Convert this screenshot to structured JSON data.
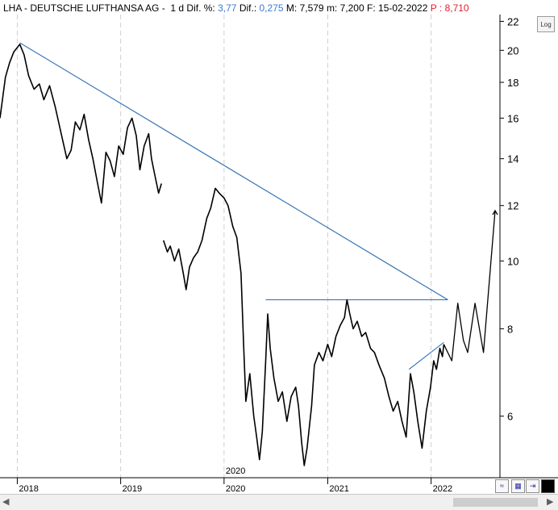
{
  "header": {
    "ticker": "LHA",
    "name": "DEUTSCHE LUFTHANSA AG",
    "period": "1 d",
    "dif_pct_label": "Dif. %:",
    "dif_pct_value": "3,77",
    "dif_label": "Dif.:",
    "dif_value": "0,275",
    "max_label": "M:",
    "max_value": "7,579",
    "min_label": "m:",
    "min_value": "7,200",
    "date_label": "F:",
    "date_value": "15-02-2022",
    "price_label": "P :",
    "price_value": "8,710"
  },
  "log_button": "Log",
  "colors": {
    "trendline": "#2b6cb0",
    "price": "#000000",
    "grid": "#c8c8c8",
    "dif": "#3a7bd5",
    "price_label": "#e0202a"
  },
  "icons": {
    "scroll_left": "left-arrow-icon",
    "scroll_right": "right-arrow-icon",
    "chart_tool": "wave-icon",
    "save": "save-icon",
    "export": "export-icon",
    "color": "color-swatch-icon"
  },
  "chart_data": {
    "type": "line",
    "y_scale": "log",
    "ylim": [
      4.9,
      22.5
    ],
    "y_ticks": [
      6,
      8,
      10,
      12,
      14,
      16,
      18,
      20,
      22
    ],
    "x_ticks": [
      "2018",
      "2019",
      "2020",
      "2021",
      "2022"
    ],
    "x_range": [
      "2017-11-01",
      "2022-09-01"
    ],
    "top_date_label": "2020",
    "series": [
      {
        "points": [
          [
            "2017-11-01",
            16.0
          ],
          [
            "2017-11-20",
            18.3
          ],
          [
            "2017-12-05",
            19.2
          ],
          [
            "2017-12-20",
            19.9
          ],
          [
            "2018-01-10",
            20.4
          ],
          [
            "2018-01-25",
            19.7
          ],
          [
            "2018-02-10",
            18.4
          ],
          [
            "2018-03-01",
            17.6
          ],
          [
            "2018-03-20",
            17.9
          ],
          [
            "2018-04-05",
            17.0
          ],
          [
            "2018-04-25",
            17.8
          ],
          [
            "2018-05-15",
            16.6
          ],
          [
            "2018-06-05",
            15.2
          ],
          [
            "2018-06-25",
            14.0
          ],
          [
            "2018-07-10",
            14.4
          ],
          [
            "2018-07-25",
            15.8
          ],
          [
            "2018-08-10",
            15.4
          ],
          [
            "2018-08-25",
            16.2
          ],
          [
            "2018-09-10",
            14.9
          ],
          [
            "2018-09-25",
            14.0
          ],
          [
            "2018-10-10",
            13.0
          ],
          [
            "2018-10-25",
            12.1
          ],
          [
            "2018-11-10",
            14.3
          ],
          [
            "2018-11-25",
            13.9
          ],
          [
            "2018-12-10",
            13.2
          ],
          [
            "2018-12-25",
            14.6
          ],
          [
            "2019-01-10",
            14.2
          ],
          [
            "2019-01-25",
            15.5
          ],
          [
            "2019-02-10",
            16.0
          ],
          [
            "2019-02-25",
            15.1
          ],
          [
            "2019-03-10",
            13.5
          ],
          [
            "2019-03-25",
            14.6
          ],
          [
            "2019-04-10",
            15.2
          ],
          [
            "2019-04-20",
            14.0
          ],
          [
            "2019-05-01",
            13.3
          ],
          [
            "2019-05-15",
            12.5
          ],
          [
            "2019-05-25",
            12.9
          ],
          null,
          [
            "2019-06-01",
            10.7
          ],
          [
            "2019-06-15",
            10.3
          ],
          [
            "2019-06-25",
            10.5
          ],
          [
            "2019-07-10",
            10.0
          ],
          [
            "2019-07-25",
            10.4
          ],
          [
            "2019-08-10",
            9.6
          ],
          [
            "2019-08-20",
            9.1
          ],
          [
            "2019-09-01",
            9.8
          ],
          [
            "2019-09-15",
            10.1
          ],
          [
            "2019-09-30",
            10.3
          ],
          [
            "2019-10-15",
            10.7
          ],
          [
            "2019-11-01",
            11.5
          ],
          [
            "2019-11-15",
            11.9
          ],
          [
            "2019-12-01",
            12.7
          ],
          [
            "2019-12-15",
            12.5
          ],
          [
            "2020-01-01",
            12.3
          ],
          [
            "2020-01-15",
            12.0
          ],
          [
            "2020-02-01",
            11.2
          ],
          [
            "2020-02-15",
            10.8
          ],
          [
            "2020-03-01",
            9.6
          ],
          [
            "2020-03-10",
            7.6
          ],
          [
            "2020-03-18",
            6.3
          ],
          [
            "2020-04-01",
            6.9
          ],
          [
            "2020-04-15",
            6.0
          ],
          [
            "2020-04-25",
            5.6
          ],
          [
            "2020-05-05",
            5.2
          ],
          [
            "2020-05-15",
            5.7
          ],
          [
            "2020-05-27",
            7.2
          ],
          [
            "2020-06-03",
            8.4
          ],
          [
            "2020-06-12",
            7.5
          ],
          [
            "2020-06-25",
            6.8
          ],
          [
            "2020-07-10",
            6.3
          ],
          [
            "2020-07-25",
            6.5
          ],
          [
            "2020-08-10",
            5.9
          ],
          [
            "2020-08-25",
            6.4
          ],
          [
            "2020-09-10",
            6.6
          ],
          [
            "2020-09-20",
            6.2
          ],
          [
            "2020-10-01",
            5.5
          ],
          [
            "2020-10-10",
            5.1
          ],
          [
            "2020-10-20",
            5.4
          ],
          [
            "2020-11-05",
            6.2
          ],
          [
            "2020-11-15",
            7.1
          ],
          [
            "2020-12-01",
            7.4
          ],
          [
            "2020-12-15",
            7.2
          ],
          [
            "2021-01-01",
            7.6
          ],
          [
            "2021-01-15",
            7.3
          ],
          [
            "2021-01-30",
            7.8
          ],
          [
            "2021-02-15",
            8.1
          ],
          [
            "2021-03-01",
            8.3
          ],
          [
            "2021-03-10",
            8.8
          ],
          [
            "2021-03-20",
            8.4
          ],
          [
            "2021-04-01",
            8.0
          ],
          [
            "2021-04-15",
            8.2
          ],
          [
            "2021-05-01",
            7.8
          ],
          [
            "2021-05-15",
            7.9
          ],
          [
            "2021-06-01",
            7.5
          ],
          [
            "2021-06-15",
            7.4
          ],
          [
            "2021-07-01",
            7.1
          ],
          [
            "2021-07-20",
            6.8
          ],
          [
            "2021-08-05",
            6.4
          ],
          [
            "2021-08-20",
            6.1
          ],
          [
            "2021-09-05",
            6.3
          ],
          [
            "2021-09-20",
            5.9
          ],
          [
            "2021-10-05",
            5.6
          ],
          [
            "2021-10-20",
            6.9
          ],
          [
            "2021-11-01",
            6.5
          ],
          [
            "2021-11-15",
            5.9
          ],
          [
            "2021-11-30",
            5.4
          ],
          [
            "2021-12-15",
            6.1
          ],
          [
            "2021-12-30",
            6.6
          ],
          [
            "2022-01-10",
            7.2
          ],
          [
            "2022-01-20",
            7.0
          ],
          [
            "2022-02-01",
            7.5
          ],
          [
            "2022-02-10",
            7.3
          ],
          [
            "2022-02-15",
            7.6
          ]
        ]
      },
      {
        "points": [
          [
            "2022-02-15",
            7.6
          ],
          [
            "2022-03-15",
            7.2
          ],
          [
            "2022-04-05",
            8.7
          ],
          [
            "2022-04-25",
            7.7
          ],
          [
            "2022-05-10",
            7.4
          ],
          [
            "2022-06-05",
            8.7
          ],
          [
            "2022-07-05",
            7.4
          ],
          [
            "2022-08-15",
            11.8
          ]
        ]
      }
    ],
    "trendlines": [
      {
        "from": [
          "2018-01-10",
          20.5
        ],
        "to": [
          "2022-03-01",
          8.8
        ]
      },
      {
        "from": [
          "2020-05-27",
          8.8
        ],
        "to": [
          "2022-03-01",
          8.8
        ]
      },
      {
        "from": [
          "2021-10-15",
          7.0
        ],
        "to": [
          "2022-02-15",
          7.65
        ]
      }
    ]
  }
}
